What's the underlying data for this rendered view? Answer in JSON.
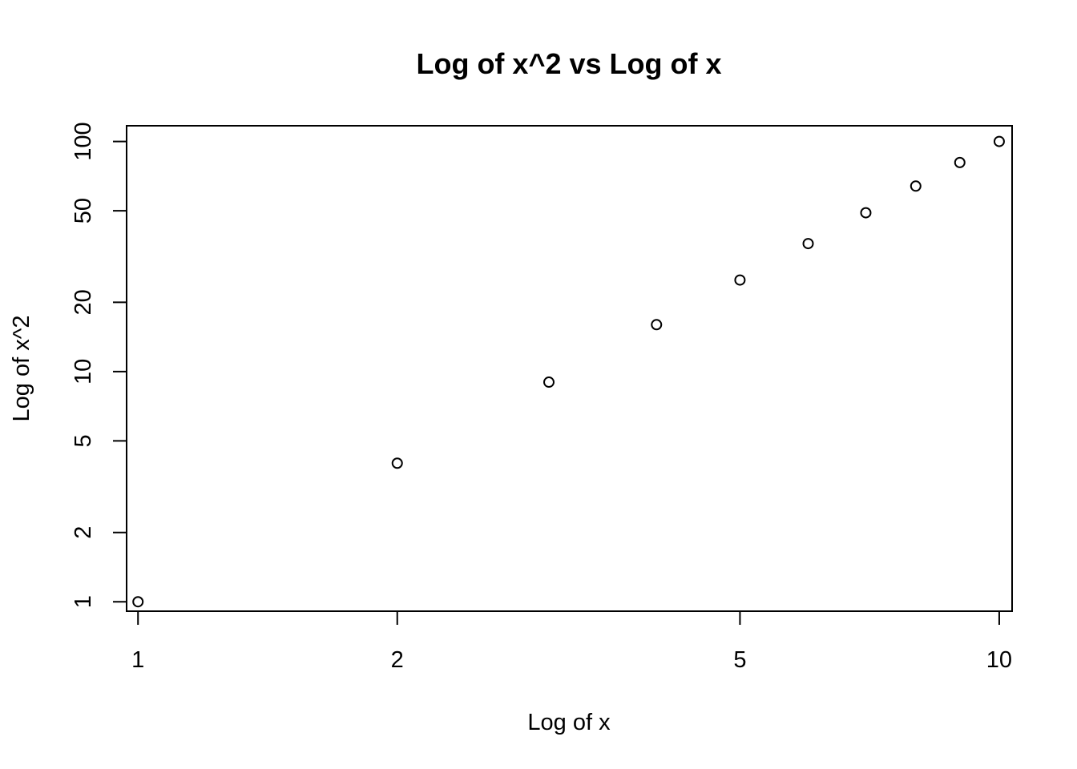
{
  "chart_data": {
    "type": "scatter",
    "title": "Log of x^2 vs Log of x",
    "xlabel": "Log of x",
    "ylabel": "Log of x^2",
    "x_scale": "log",
    "y_scale": "log",
    "xlim": [
      0.97,
      10.35
    ],
    "ylim": [
      0.91,
      117
    ],
    "x_ticks": [
      1,
      2,
      5,
      10
    ],
    "x_tick_labels": [
      "1",
      "2",
      "5",
      "10"
    ],
    "y_ticks": [
      1,
      2,
      5,
      10,
      20,
      50,
      100
    ],
    "y_tick_labels": [
      "1",
      "2",
      "5",
      "10",
      "20",
      "50",
      "100"
    ],
    "grid": false,
    "marker": "open-circle",
    "points": [
      {
        "x": 1,
        "y": 1
      },
      {
        "x": 2,
        "y": 4
      },
      {
        "x": 3,
        "y": 9
      },
      {
        "x": 4,
        "y": 16
      },
      {
        "x": 5,
        "y": 25
      },
      {
        "x": 6,
        "y": 36
      },
      {
        "x": 7,
        "y": 49
      },
      {
        "x": 8,
        "y": 64
      },
      {
        "x": 9,
        "y": 81
      },
      {
        "x": 10,
        "y": 100
      }
    ]
  }
}
